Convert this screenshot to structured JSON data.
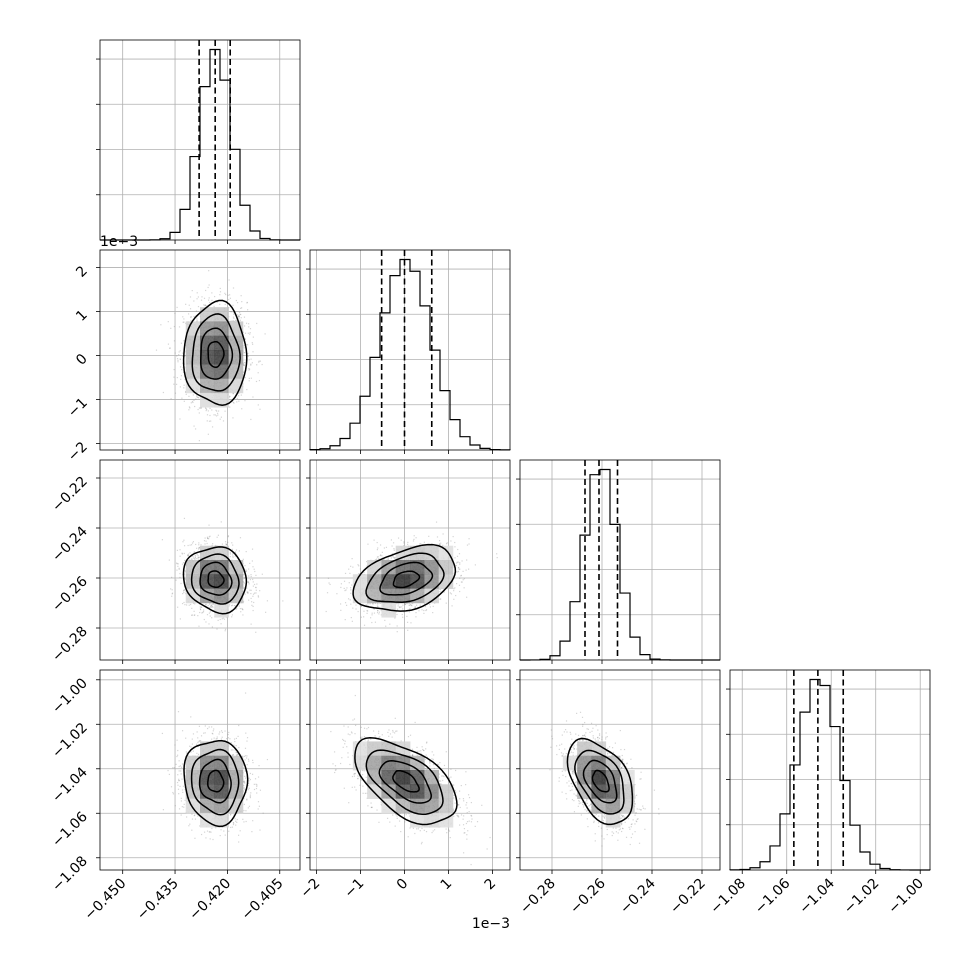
{
  "chart_data": {
    "type": "corner",
    "params": [
      {
        "lim": [
          -0.4565,
          -0.3992
        ],
        "ticks": [
          -0.45,
          -0.435,
          -0.42,
          -0.405
        ],
        "tick_labels": [
          "−0.450",
          "−0.435",
          "−0.420",
          "−0.405"
        ],
        "offset_label": "",
        "quantiles": [
          -0.4281,
          -0.4235,
          -0.4192
        ],
        "mean": -0.4234,
        "sd": 0.0045
      },
      {
        "lim": [
          -0.00215,
          0.0024
        ],
        "ticks": [
          -0.002,
          -0.001,
          0.0,
          0.001,
          0.002
        ],
        "tick_labels": [
          "−2",
          "−1",
          "0",
          "1",
          "2"
        ],
        "offset_label": "1e−3",
        "quantiles": [
          -0.00052,
          0.0,
          0.00062
        ],
        "mean": 3e-05,
        "sd": 0.00058
      },
      {
        "lim": [
          -0.2928,
          -0.2128
        ],
        "ticks": [
          -0.28,
          -0.26,
          -0.24,
          -0.22
        ],
        "tick_labels": [
          "−0.28",
          "−0.26",
          "−0.24",
          "−0.22"
        ],
        "offset_label": "",
        "quantiles": [
          -0.2668,
          -0.2612,
          -0.2538
        ],
        "mean": -0.2605,
        "sd": 0.0065
      },
      {
        "lim": [
          -1.0855,
          -0.9956
        ],
        "ticks": [
          -1.08,
          -1.06,
          -1.04,
          -1.02,
          -1.0
        ],
        "tick_labels": [
          "−1.08",
          "−1.06",
          "−1.04",
          "−1.02",
          "−1.00"
        ],
        "offset_label": "",
        "quantiles": [
          -1.0568,
          -1.046,
          -1.0346
        ],
        "mean": -1.0457,
        "sd": 0.0095
      }
    ],
    "correlations": [
      [
        1,
        0,
        -0.1,
        -0.05
      ],
      [
        0,
        1,
        0.35,
        -0.55
      ],
      [
        -0.1,
        0.35,
        1,
        -0.45
      ],
      [
        -0.05,
        -0.55,
        -0.45,
        1
      ]
    ],
    "hist_bins": 20,
    "contour_levels": [
      0.118,
      0.393,
      0.675,
      0.865
    ],
    "grid": true
  }
}
